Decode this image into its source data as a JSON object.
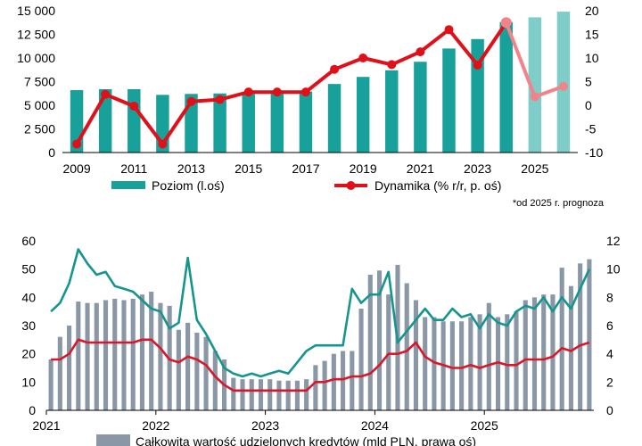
{
  "chart_data": [
    {
      "type": "bar",
      "title": "",
      "note": "*od 2025 r. prognoza",
      "colors": {
        "level": "#17a19a",
        "level_forecast": "#7fcdc8",
        "dynamic": "#e0101a",
        "dynamic_forecast": "#f0848a"
      },
      "x": [
        2009,
        2010,
        2011,
        2012,
        2013,
        2014,
        2015,
        2016,
        2017,
        2018,
        2019,
        2020,
        2021,
        2022,
        2023,
        2024,
        2025,
        2026
      ],
      "x_tick_labels": [
        "2009",
        "2011",
        "2013",
        "2015",
        "2017",
        "2019",
        "2021",
        "2023",
        "2025"
      ],
      "y_left_ticks": [
        "0",
        "2 500",
        "5 000",
        "7 500",
        "10 000",
        "12 500",
        "15 000"
      ],
      "y_right_ticks": [
        "-10",
        "-5",
        "0",
        "5",
        "10",
        "15",
        "20"
      ],
      "ylim_left": [
        0,
        15000
      ],
      "ylim_right": [
        -10,
        20
      ],
      "series": [
        {
          "name": "Poziom (l.oś)",
          "axis": "left",
          "values": [
            6600,
            6700,
            6700,
            6100,
            6200,
            6250,
            6300,
            6400,
            6450,
            7250,
            8000,
            8700,
            9600,
            11000,
            12000,
            13800,
            14300,
            14900
          ]
        },
        {
          "name": "Dynamika (% r/r, p. oś)",
          "axis": "right",
          "values": [
            -8.2,
            2.3,
            -0.2,
            -8.2,
            0.8,
            1.2,
            2.8,
            2.8,
            2.8,
            7.6,
            10,
            8.6,
            11.3,
            16,
            8.5,
            17.5,
            1.8,
            4
          ]
        }
      ],
      "forecast_from_index": 16,
      "legend": "bottom"
    },
    {
      "type": "bar",
      "title": "",
      "colors": {
        "bars": "#8a97a6",
        "teal_line": "#16958f",
        "red_line": "#d8182a"
      },
      "x_tick_labels": [
        "2021",
        "2022",
        "2023",
        "2024",
        "2025"
      ],
      "y_left_ticks": [
        "0",
        "10",
        "20",
        "30",
        "40",
        "50",
        "60"
      ],
      "y_right_ticks": [
        "0",
        "2",
        "4",
        "6",
        "8",
        "10",
        "12"
      ],
      "ylim_left": [
        0,
        60
      ],
      "ylim_right": [
        0,
        12
      ],
      "series": [
        {
          "name": "Całkowita wartość udzielonych kredytów (mld PLN, prawa oś)",
          "axis": "right",
          "values": [
            3.6,
            5.2,
            6.0,
            7.7,
            7.6,
            7.6,
            7.8,
            7.9,
            7.8,
            7.9,
            8.2,
            8.4,
            7.6,
            7.4,
            5.7,
            6.2,
            5.5,
            5.2,
            4.2,
            3.6,
            2.3,
            2.2,
            2.2,
            2.2,
            2.2,
            2.1,
            2.1,
            2.1,
            2.2,
            3.2,
            3.5,
            4.0,
            4.2,
            4.2,
            7.2,
            9.6,
            9.9,
            8.2,
            10.3,
            9.0,
            7.8,
            6.6,
            6.6,
            6.3,
            6.3,
            6.3,
            6.6,
            6.8,
            7.6,
            6.6,
            6.8,
            7.0,
            7.8,
            8.0,
            8.2,
            8.2,
            10.1,
            8.8,
            10.4,
            10.7
          ]
        },
        {
          "axis": "left",
          "values": [
            35,
            38,
            45,
            57,
            52,
            48,
            49,
            44,
            43,
            42,
            39,
            36,
            35,
            29,
            31,
            54,
            32,
            27,
            21,
            15,
            13,
            12,
            13,
            12,
            13,
            14,
            13,
            17,
            21,
            23,
            23,
            23,
            23,
            43,
            38,
            41,
            41,
            49,
            24,
            28,
            32,
            36,
            32,
            32,
            36,
            33,
            34,
            29,
            34,
            31,
            30,
            35,
            37,
            36,
            40,
            35,
            40,
            36,
            43,
            50
          ]
        },
        {
          "axis": "left",
          "values": [
            18,
            18,
            20,
            25,
            24,
            24,
            24,
            24,
            24,
            24,
            25,
            25,
            22,
            18,
            17,
            19,
            18,
            16,
            12,
            9,
            7,
            7,
            7,
            7,
            7,
            7,
            7,
            7,
            7,
            10,
            10,
            11,
            11,
            12,
            12,
            13,
            16,
            20,
            20,
            21,
            24,
            19,
            17,
            16,
            15,
            15,
            16,
            15,
            16,
            17,
            16,
            16,
            18,
            18,
            18,
            19,
            22,
            21,
            23,
            24
          ]
        }
      ]
    }
  ]
}
